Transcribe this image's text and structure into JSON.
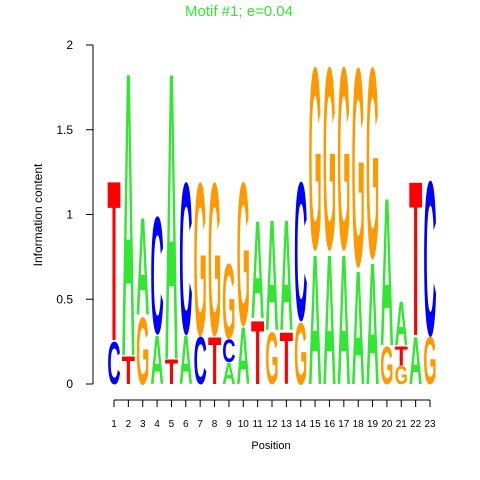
{
  "chart_data": {
    "type": "logo",
    "title": "Motif #1; e=0.04",
    "title_color": "#33e633",
    "x_label": "Position",
    "y_label": "Information content",
    "x": [
      1,
      2,
      3,
      4,
      5,
      6,
      7,
      8,
      9,
      10,
      11,
      12,
      13,
      14,
      15,
      16,
      17,
      18,
      19,
      20,
      21,
      22,
      23
    ],
    "ylim": [
      0,
      2
    ],
    "yticks": [
      0,
      0.5,
      1,
      1.5,
      2
    ],
    "series": [
      {
        "name": "A",
        "color": "#33e633",
        "values": [
          0,
          1.75,
          0.6,
          0.3,
          1.77,
          0.3,
          0,
          0,
          0.13,
          0.35,
          0.6,
          0.68,
          0.68,
          0,
          0.8,
          0.8,
          0.8,
          0.7,
          0.75,
          0.91,
          0.27,
          0.29,
          0
        ]
      },
      {
        "name": "C",
        "color": "#0000ff",
        "values": [
          0.26,
          0,
          0,
          0.72,
          0,
          0.93,
          0.29,
          0,
          0.14,
          0,
          0,
          0,
          0,
          0.85,
          0,
          0,
          0,
          0,
          0,
          0,
          0,
          0,
          0.95
        ]
      },
      {
        "name": "G",
        "color": "#ff9900",
        "values": [
          0,
          0,
          0.41,
          0,
          0,
          0,
          0.94,
          0.94,
          0.46,
          0.88,
          0,
          0.32,
          0,
          0.38,
          1.12,
          1.12,
          1.12,
          1.22,
          1.17,
          0.23,
          0.11,
          0,
          0.29
        ]
      },
      {
        "name": "T",
        "color": "#ff0000",
        "values": [
          0.985,
          0.17,
          0,
          0,
          0.15,
          0,
          0,
          0.29,
          0,
          0,
          0.39,
          0,
          0.32,
          0,
          0,
          0,
          0,
          0,
          0,
          0,
          0.12,
          0.95,
          0
        ]
      }
    ]
  }
}
